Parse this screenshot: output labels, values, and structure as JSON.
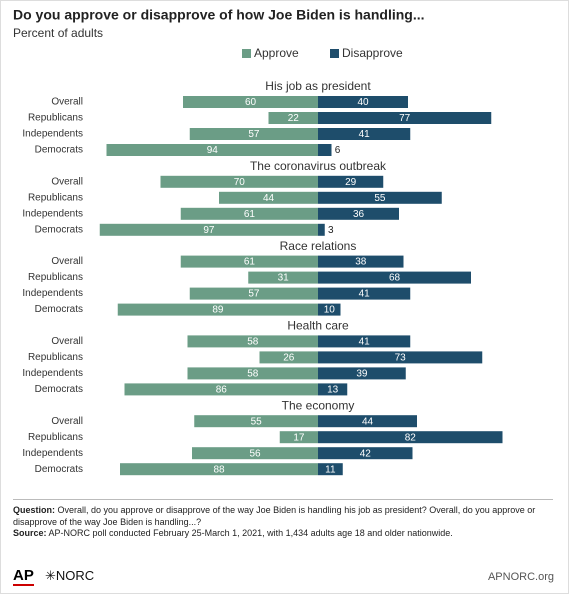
{
  "chart_data": {
    "type": "diverging-bar",
    "title": "Do you approve or disapprove of how Joe Biden is handling...",
    "subtitle": "Percent of adults",
    "series": [
      {
        "name": "Approve",
        "color": "#6b9d86",
        "values": [
          [
            60,
            22,
            57,
            94
          ],
          [
            70,
            44,
            61,
            97
          ],
          [
            61,
            31,
            57,
            89
          ],
          [
            58,
            26,
            58,
            86
          ],
          [
            55,
            17,
            56,
            88
          ]
        ]
      },
      {
        "name": "Disapprove",
        "color": "#1e4d6b",
        "values": [
          [
            40,
            77,
            41,
            6
          ],
          [
            29,
            55,
            36,
            3
          ],
          [
            38,
            68,
            41,
            10
          ],
          [
            41,
            73,
            39,
            13
          ],
          [
            44,
            82,
            42,
            11
          ]
        ]
      }
    ],
    "panels": [
      {
        "title": "His job as president",
        "categories": [
          "Overall",
          "Republicans",
          "Independents",
          "Democrats"
        ]
      },
      {
        "title": "The coronavirus outbreak",
        "categories": [
          "Overall",
          "Republicans",
          "Independents",
          "Democrats"
        ]
      },
      {
        "title": "Race relations",
        "categories": [
          "Overall",
          "Republicans",
          "Independents",
          "Democrats"
        ]
      },
      {
        "title": "Health care",
        "categories": [
          "Overall",
          "Republicans",
          "Independents",
          "Democrats"
        ]
      },
      {
        "title": "The economy",
        "categories": [
          "Overall",
          "Republicans",
          "Independents",
          "Democrats"
        ]
      }
    ]
  },
  "footer": {
    "question_label": "Question:",
    "question": "Overall, do you approve or disapprove of the way Joe Biden is handling his job as president? Overall, do you approve or disapprove of the way Joe Biden is handling...?",
    "source_label": "Source:",
    "source": "AP-NORC poll conducted February 25-March 1, 2021, with 1,434 adults age 18 and older nationwide.",
    "logo_ap": "AP",
    "logo_norc": "NORC",
    "site": "APNORC.org"
  }
}
